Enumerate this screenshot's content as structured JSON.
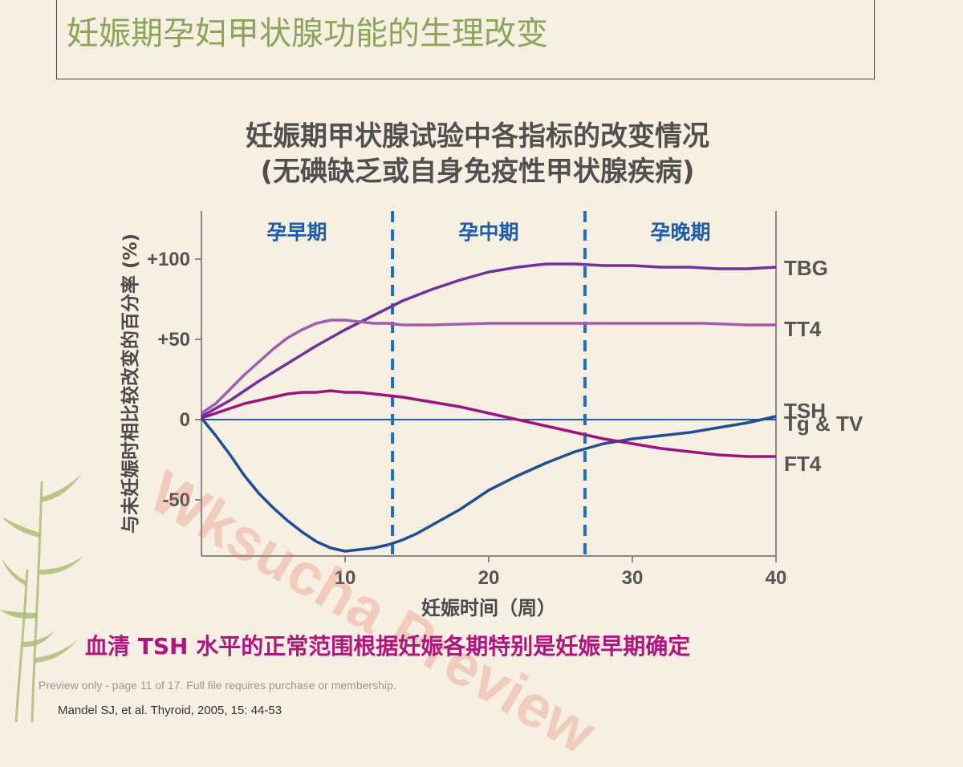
{
  "slide": {
    "title": "妊娠期孕妇甲状腺功能的生理改变",
    "chart_title_line1": "妊娠期甲状腺试验中各指标的改变情况",
    "chart_title_line2": "(无碘缺乏或自身免疫性甲状腺疾病)",
    "note": "血清 TSH 水平的正常范围根据妊娠各期特别是妊娠早期确定",
    "preview_notice": "Preview only - page 11 of 17. Full file requires purchase or membership.",
    "citation": "Mandel SJ, et al.  Thyroid, 2005, 15: 44-53",
    "watermark": "Wksucha Preview"
  },
  "colors": {
    "title": "#8aa65a",
    "TBG": "#7030a0",
    "TT4": "#a35bb0",
    "TSH": "#1f4e99",
    "FT4": "#a0127e",
    "baseline": "#1e5ea8",
    "divider": "#1e6fc0",
    "note": "#b0157f"
  },
  "chart_data": {
    "type": "line",
    "title": "",
    "xlabel": "妊娠时间（周）",
    "ylabel": "与未妊娠时相比较改变的百分率 (%)",
    "xlim": [
      0,
      40
    ],
    "ylim": [
      -85,
      130
    ],
    "x_ticks": [
      10,
      20,
      30,
      40
    ],
    "x_tick_labels": [
      "10",
      "20",
      "30",
      "40"
    ],
    "y_ticks": [
      100,
      50,
      0,
      -50
    ],
    "y_tick_labels": [
      "+100",
      "+50",
      "0",
      "-50"
    ],
    "grid": false,
    "periods": [
      {
        "label": "孕早期",
        "from": 0,
        "to": 13.3
      },
      {
        "label": "孕中期",
        "from": 13.3,
        "to": 26.7
      },
      {
        "label": "孕晚期",
        "from": 26.7,
        "to": 40
      }
    ],
    "dividers_x": [
      13.3,
      26.7
    ],
    "baseline_label": "Tg & TV",
    "series": [
      {
        "name": "TBG",
        "x": [
          0,
          2,
          4,
          6,
          8,
          10,
          12,
          14,
          16,
          18,
          20,
          22,
          24,
          26,
          28,
          30,
          32,
          34,
          36,
          38,
          40
        ],
        "values": [
          2,
          12,
          24,
          35,
          46,
          56,
          65,
          74,
          81,
          87,
          92,
          95,
          97,
          97,
          96,
          96,
          95,
          95,
          94,
          94,
          95
        ]
      },
      {
        "name": "TT4",
        "x": [
          0,
          1,
          2,
          3,
          4,
          5,
          6,
          7,
          8,
          9,
          10,
          11,
          12,
          13,
          14,
          16,
          20,
          25,
          30,
          35,
          38,
          40
        ],
        "values": [
          4,
          10,
          19,
          28,
          36,
          44,
          51,
          56,
          60,
          62,
          62,
          61,
          60,
          60,
          59,
          59,
          60,
          60,
          60,
          60,
          59,
          59
        ]
      },
      {
        "name": "TSH",
        "x": [
          0,
          1,
          2,
          3,
          4,
          5,
          6,
          7,
          8,
          9,
          10,
          11,
          12,
          13,
          14,
          15,
          16,
          18,
          20,
          22,
          24,
          26,
          28,
          30,
          32,
          34,
          36,
          38,
          40
        ],
        "values": [
          1,
          -10,
          -22,
          -35,
          -46,
          -55,
          -63,
          -70,
          -76,
          -80,
          -82,
          -81,
          -80,
          -78,
          -75,
          -71,
          -66,
          -56,
          -44,
          -35,
          -27,
          -20,
          -15,
          -12,
          -10,
          -8,
          -5,
          -2,
          2
        ]
      },
      {
        "name": "FT4",
        "x": [
          0,
          1,
          2,
          3,
          4,
          5,
          6,
          7,
          8,
          9,
          10,
          11,
          12,
          13,
          14,
          16,
          18,
          20,
          22,
          24,
          26,
          28,
          30,
          32,
          34,
          36,
          38,
          40
        ],
        "values": [
          1,
          4,
          7,
          10,
          12,
          14,
          16,
          17,
          17,
          18,
          17,
          17,
          16,
          15,
          14,
          11,
          8,
          4,
          0,
          -4,
          -8,
          -12,
          -15,
          -18,
          -20,
          -22,
          -23,
          -23
        ]
      }
    ]
  }
}
